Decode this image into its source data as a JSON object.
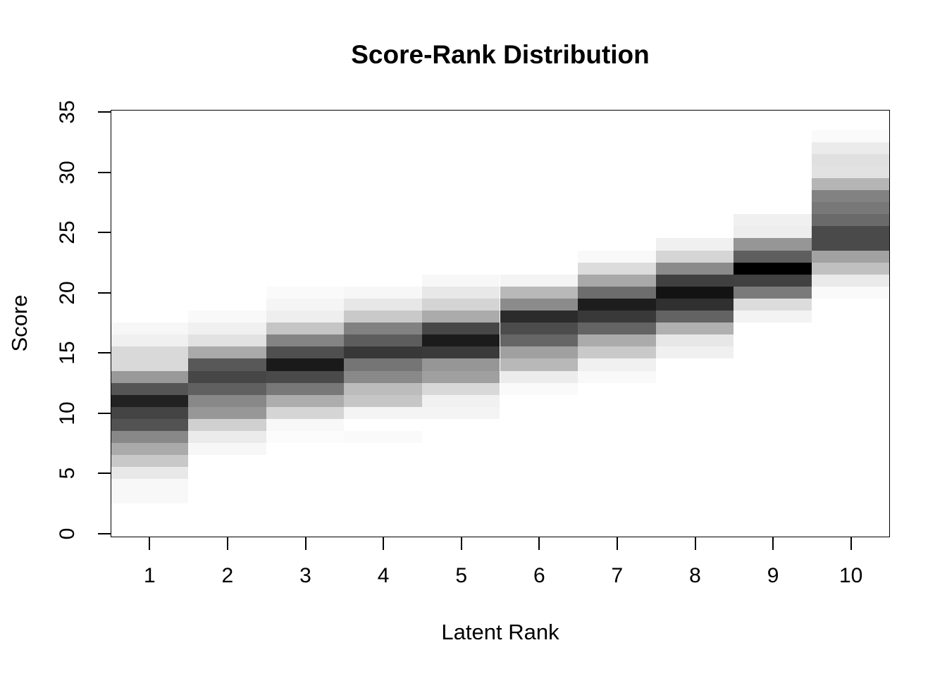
{
  "chart_data": {
    "type": "heatmap",
    "title": "Score-Rank Distribution",
    "xlabel": "Latent Rank",
    "ylabel": "Score",
    "x_ticks": [
      1,
      2,
      3,
      4,
      5,
      6,
      7,
      8,
      9,
      10
    ],
    "y_ticks": [
      0,
      5,
      10,
      15,
      20,
      25,
      30,
      35
    ],
    "xlim": [
      0.5,
      10.5
    ],
    "ylim": [
      -0.3,
      35.2
    ],
    "grid": false,
    "legend": "none",
    "colormap": "grayscale, darker = higher density, white = zero",
    "background_color": "#ffffff",
    "axis_color": "#000000",
    "cell_size": {
      "rank_span": 1,
      "score_span": 1
    },
    "series": [
      {
        "rank": 1,
        "cells": [
          [
            17,
            "#f7f7f7"
          ],
          [
            16,
            "#f0f0f0"
          ],
          [
            15,
            "#d9d9d9"
          ],
          [
            14,
            "#d9d9d9"
          ],
          [
            13,
            "#999999"
          ],
          [
            12,
            "#555555"
          ],
          [
            11,
            "#222222"
          ],
          [
            10,
            "#444444"
          ],
          [
            9,
            "#525252"
          ],
          [
            8,
            "#888888"
          ],
          [
            7,
            "#aaaaaa"
          ],
          [
            6,
            "#c8c8c8"
          ],
          [
            5,
            "#e8e8e8"
          ],
          [
            4,
            "#f8f8f8"
          ],
          [
            3,
            "#f8f8f8"
          ]
        ]
      },
      {
        "rank": 2,
        "cells": [
          [
            18,
            "#f9f9f9"
          ],
          [
            17,
            "#f0f0f0"
          ],
          [
            16,
            "#e2e2e2"
          ],
          [
            15,
            "#aaaaaa"
          ],
          [
            14,
            "#585858"
          ],
          [
            13,
            "#464646"
          ],
          [
            12,
            "#606060"
          ],
          [
            11,
            "#888888"
          ],
          [
            10,
            "#979797"
          ],
          [
            9,
            "#d0d0d0"
          ],
          [
            8,
            "#ebebeb"
          ],
          [
            7,
            "#f7f7f7"
          ]
        ]
      },
      {
        "rank": 3,
        "cells": [
          [
            20,
            "#fafafa"
          ],
          [
            19,
            "#f5f5f5"
          ],
          [
            18,
            "#eeeeee"
          ],
          [
            17,
            "#c5c5c5"
          ],
          [
            16,
            "#848484"
          ],
          [
            15,
            "#4f4f4f"
          ],
          [
            14,
            "#1a1a1a"
          ],
          [
            13,
            "#4a4a4a"
          ],
          [
            12,
            "#787878"
          ],
          [
            11,
            "#adadad"
          ],
          [
            10,
            "#d5d5d5"
          ],
          [
            9,
            "#f8f8f8"
          ],
          [
            8,
            "#fcfcfc"
          ]
        ]
      },
      {
        "rank": 4,
        "cells": [
          [
            20,
            "#f7f7f7"
          ],
          [
            19,
            "#e7e7e7"
          ],
          [
            18,
            "#c9c9c9"
          ],
          [
            17,
            "#818181"
          ],
          [
            16,
            "#5d5d5d"
          ],
          [
            15,
            "#383838"
          ],
          [
            14,
            "#757575"
          ],
          [
            13,
            "#898989"
          ],
          [
            12,
            "#bcbcbc"
          ],
          [
            11,
            "#c6c6c6"
          ],
          [
            10,
            "#f4f4f4"
          ],
          [
            8,
            "#fafafa"
          ]
        ]
      },
      {
        "rank": 5,
        "cells": [
          [
            21,
            "#f7f7f7"
          ],
          [
            20,
            "#e8e8e8"
          ],
          [
            19,
            "#d4d4d4"
          ],
          [
            18,
            "#ababab"
          ],
          [
            17,
            "#474747"
          ],
          [
            16,
            "#1b1b1b"
          ],
          [
            15,
            "#3a3a3a"
          ],
          [
            14,
            "#969696"
          ],
          [
            13,
            "#a0a0a0"
          ],
          [
            12,
            "#d8d8d8"
          ],
          [
            11,
            "#f1f1f1"
          ],
          [
            10,
            "#f4f4f4"
          ]
        ]
      },
      {
        "rank": 6,
        "cells": [
          [
            21,
            "#f4f4f4"
          ],
          [
            20,
            "#b9b9b9"
          ],
          [
            19,
            "#8b8b8b"
          ],
          [
            18,
            "#2b2b2b"
          ],
          [
            17,
            "#4c4c4c"
          ],
          [
            16,
            "#666666"
          ],
          [
            15,
            "#a0a0a0"
          ],
          [
            14,
            "#b8b8b8"
          ],
          [
            13,
            "#ececec"
          ],
          [
            12,
            "#fafafa"
          ]
        ]
      },
      {
        "rank": 7,
        "cells": [
          [
            23,
            "#f9f9f9"
          ],
          [
            22,
            "#dcdcdc"
          ],
          [
            21,
            "#a9a9a9"
          ],
          [
            20,
            "#6d6d6d"
          ],
          [
            19,
            "#1d1d1d"
          ],
          [
            18,
            "#393939"
          ],
          [
            17,
            "#646464"
          ],
          [
            16,
            "#ababab"
          ],
          [
            15,
            "#c9c9c9"
          ],
          [
            14,
            "#f0f0f0"
          ],
          [
            13,
            "#f9f9f9"
          ]
        ]
      },
      {
        "rank": 8,
        "cells": [
          [
            24,
            "#f0f0f0"
          ],
          [
            23,
            "#d5d5d5"
          ],
          [
            22,
            "#8b8b8b"
          ],
          [
            21,
            "#404040"
          ],
          [
            20,
            "#131313"
          ],
          [
            19,
            "#303030"
          ],
          [
            18,
            "#636363"
          ],
          [
            17,
            "#b0b0b0"
          ],
          [
            16,
            "#e7e7e7"
          ],
          [
            15,
            "#f0f0f0"
          ]
        ]
      },
      {
        "rank": 9,
        "cells": [
          [
            26,
            "#f0f0f0"
          ],
          [
            25,
            "#ededed"
          ],
          [
            24,
            "#969696"
          ],
          [
            23,
            "#5e5e5e"
          ],
          [
            22,
            "#000000"
          ],
          [
            21,
            "#414141"
          ],
          [
            20,
            "#7a7a7a"
          ],
          [
            19,
            "#dcdcdc"
          ],
          [
            18,
            "#f3f3f3"
          ]
        ]
      },
      {
        "rank": 10,
        "cells": [
          [
            33,
            "#fafafa"
          ],
          [
            32,
            "#ebebeb"
          ],
          [
            31,
            "#e0e0e0"
          ],
          [
            30,
            "#e2e2e2"
          ],
          [
            29,
            "#b5b5b5"
          ],
          [
            28,
            "#828282"
          ],
          [
            27,
            "#787878"
          ],
          [
            26,
            "#6a6a6a"
          ],
          [
            25,
            "#4a4a4a"
          ],
          [
            24,
            "#4a4a4a"
          ],
          [
            23,
            "#a2a2a2"
          ],
          [
            22,
            "#c0c0c0"
          ],
          [
            21,
            "#eaeaea"
          ],
          [
            20,
            "#fafafa"
          ]
        ]
      }
    ]
  }
}
